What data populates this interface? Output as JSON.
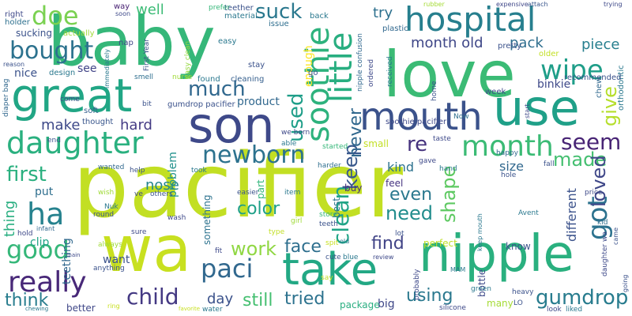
{
  "words": [
    {
      "text": "pacifier",
      "color": "#c2df23"
    },
    {
      "text": "baby",
      "color": "#35b779"
    },
    {
      "text": "love",
      "color": "#3bbb75"
    },
    {
      "text": "great",
      "color": "#21a685"
    },
    {
      "text": "son",
      "color": "#3e4989"
    },
    {
      "text": "use",
      "color": "#1fa088"
    },
    {
      "text": "wa",
      "color": "#c8e020"
    },
    {
      "text": "nipple",
      "color": "#2ab07f"
    },
    {
      "text": "mouth",
      "color": "#3b528b"
    },
    {
      "text": "take",
      "color": "#22a884"
    },
    {
      "text": "hospital",
      "color": "#277f8e"
    },
    {
      "text": "daughter",
      "color": "#2ab07f"
    },
    {
      "text": "month",
      "color": "#3bbb75"
    },
    {
      "text": "newborn",
      "color": "#2c728e"
    },
    {
      "text": "soothie",
      "color": "#2db27d"
    },
    {
      "text": "little",
      "color": "#28ae80"
    },
    {
      "text": "really",
      "color": "#482878"
    },
    {
      "text": "paci",
      "color": "#31688e"
    },
    {
      "text": "wipe",
      "color": "#1f9e89"
    },
    {
      "text": "doe",
      "color": "#7ad151"
    },
    {
      "text": "bought",
      "color": "#2c728e"
    },
    {
      "text": "ha",
      "color": "#26828e"
    },
    {
      "text": "first",
      "color": "#2ab07f"
    },
    {
      "text": "child",
      "color": "#443983"
    },
    {
      "text": "used",
      "color": "#1f9e89"
    },
    {
      "text": "got",
      "color": "#2c728e"
    },
    {
      "text": "clean",
      "color": "#20a486"
    },
    {
      "text": "seem",
      "color": "#482475"
    },
    {
      "text": "good",
      "color": "#35b779"
    },
    {
      "text": "gumdrop",
      "color": "#287c8e"
    },
    {
      "text": "much",
      "color": "#31688e"
    },
    {
      "text": "suck",
      "color": "#2a788e"
    },
    {
      "text": "re",
      "color": "#46337e"
    },
    {
      "text": "made",
      "color": "#44bf70"
    },
    {
      "text": "give",
      "color": "#b5de2b"
    },
    {
      "text": "work",
      "color": "#90d743"
    },
    {
      "text": "keep",
      "color": "#38588c"
    },
    {
      "text": "need",
      "color": "#228d8d"
    },
    {
      "text": "loved",
      "color": "#3f4788"
    },
    {
      "text": "color",
      "color": "#1fa088"
    },
    {
      "text": "shape",
      "color": "#5ec962"
    },
    {
      "text": "tried",
      "color": "#2c728e"
    },
    {
      "text": "face",
      "color": "#2e6f8e"
    },
    {
      "text": "still",
      "color": "#44bf70"
    },
    {
      "text": "find",
      "color": "#414487"
    },
    {
      "text": "using",
      "color": "#2a788e"
    },
    {
      "text": "even",
      "color": "#2a788e"
    },
    {
      "text": "think",
      "color": "#287d8e"
    },
    {
      "text": "never",
      "color": "#31688e"
    },
    {
      "text": "month old",
      "color": "#3f4788"
    },
    {
      "text": "pack",
      "color": "#2e6e8e"
    },
    {
      "text": "piece",
      "color": "#277f8e"
    },
    {
      "text": "different",
      "color": "#3b528b"
    },
    {
      "text": "hard",
      "color": "#443b84"
    },
    {
      "text": "make",
      "color": "#3e4989"
    },
    {
      "text": "thing",
      "color": "#28ae80"
    },
    {
      "text": "well",
      "color": "#3bbb75"
    },
    {
      "text": "try",
      "color": "#2d708e"
    },
    {
      "text": "day",
      "color": "#3b528b"
    },
    {
      "text": "nose",
      "color": "#25848e"
    },
    {
      "text": "size",
      "color": "#31688e"
    },
    {
      "text": "kind",
      "color": "#2c728e"
    },
    {
      "text": "paci1",
      "color": "#31688e"
    },
    {
      "text": "binkie",
      "color": "#3e4989"
    },
    {
      "text": "product",
      "color": "#31688e"
    },
    {
      "text": "nice",
      "color": "#3b528b"
    },
    {
      "text": "see",
      "color": "#414487"
    },
    {
      "text": "put",
      "color": "#2e6e8e"
    },
    {
      "text": "want",
      "color": "#3b528b"
    },
    {
      "text": "better",
      "color": "#3f4788"
    },
    {
      "text": "big",
      "color": "#3f4788"
    },
    {
      "text": "perfect",
      "color": "#bddf26"
    },
    {
      "text": "enough",
      "color": "#fde725"
    },
    {
      "text": "teething",
      "color": "#31688e"
    },
    {
      "text": "clip",
      "color": "#20a386"
    },
    {
      "text": "problem",
      "color": "#21918c"
    },
    {
      "text": "something",
      "color": "#2c728e"
    },
    {
      "text": "sucking",
      "color": "#3b528b"
    },
    {
      "text": "small",
      "color": "#c2df23"
    },
    {
      "text": "buy",
      "color": "#46307e"
    },
    {
      "text": "know",
      "color": "#3b528b"
    },
    {
      "text": "bottle",
      "color": "#3e4989"
    },
    {
      "text": "package",
      "color": "#28ae80"
    },
    {
      "text": "many",
      "color": "#a5db36"
    },
    {
      "text": "part",
      "color": "#31b57b"
    },
    {
      "text": "feel",
      "color": "#463480"
    },
    {
      "text": "best",
      "color": "#2c728e"
    },
    {
      "text": "gumdrop pacifier",
      "color": "#3b528b"
    },
    {
      "text": "soothie pacifier",
      "color": "#3e4989"
    },
    {
      "text": "found",
      "color": "#2a788e"
    },
    {
      "text": "cleaning",
      "color": "#355f8d"
    },
    {
      "text": "design",
      "color": "#2a788e"
    },
    {
      "text": "chew",
      "color": "#31688e"
    },
    {
      "text": "orthodontic",
      "color": "#2a788e"
    },
    {
      "text": "recommended",
      "color": "#3b528b"
    },
    {
      "text": "week",
      "color": "#3e4989"
    },
    {
      "text": "plastic",
      "color": "#31688e"
    },
    {
      "text": "back",
      "color": "#2a788e"
    },
    {
      "text": "right",
      "color": "#3e4989"
    },
    {
      "text": "holder",
      "color": "#2d708e"
    },
    {
      "text": "actually",
      "color": "#a0da39"
    },
    {
      "text": "nap",
      "color": "#3f4788"
    },
    {
      "text": "teether",
      "color": "#3b528b"
    },
    {
      "text": "material",
      "color": "#2a788e"
    },
    {
      "text": "issue",
      "color": "#2e6e8e"
    },
    {
      "text": "prefer",
      "color": "#35b779"
    },
    {
      "text": "way",
      "color": "#482173"
    },
    {
      "text": "soon",
      "color": "#3e4989"
    },
    {
      "text": "First Year",
      "color": "#3b528b"
    },
    {
      "text": "easy",
      "color": "#2a788e"
    },
    {
      "text": "easy clean",
      "color": "#95d840"
    },
    {
      "text": "rubber",
      "color": "#a5db36"
    },
    {
      "text": "expensive",
      "color": "#3f4788"
    },
    {
      "text": "attach",
      "color": "#39568c"
    },
    {
      "text": "trying",
      "color": "#3e4989"
    },
    {
      "text": "stay",
      "color": "#3b528b"
    },
    {
      "text": "older",
      "color": "#c2df23"
    },
    {
      "text": "pretty",
      "color": "#3b528b"
    },
    {
      "text": "ordered",
      "color": "#3e4989"
    },
    {
      "text": "received",
      "color": "#2a788e"
    },
    {
      "text": "nipple confusion",
      "color": "#31688e"
    },
    {
      "text": "go",
      "color": "#3b528b"
    },
    {
      "text": "reason",
      "color": "#3b528b"
    },
    {
      "text": "diaper bag",
      "color": "#31688e"
    },
    {
      "text": "immediately",
      "color": "#2a788e"
    },
    {
      "text": "smell",
      "color": "#2e6e8e"
    },
    {
      "text": "nurse",
      "color": "#a0da39"
    },
    {
      "text": "come",
      "color": "#3e4989"
    },
    {
      "text": "bit",
      "color": "#3b528b"
    },
    {
      "text": "soft",
      "color": "#355f8d"
    },
    {
      "text": "thought",
      "color": "#39568c"
    },
    {
      "text": "Now",
      "color": "#2e6e8e"
    },
    {
      "text": "home",
      "color": "#3b528b"
    },
    {
      "text": "start",
      "color": "#3e4989"
    },
    {
      "text": "end",
      "color": "#3b528b"
    },
    {
      "text": "we born",
      "color": "#3e4989"
    },
    {
      "text": "able",
      "color": "#2a788e"
    },
    {
      "text": "started",
      "color": "#35b779"
    },
    {
      "text": "taste",
      "color": "#3e4989"
    },
    {
      "text": "happy",
      "color": "#31688e"
    },
    {
      "text": "fall",
      "color": "#3b528b"
    },
    {
      "text": "hand",
      "color": "#2a788e"
    },
    {
      "text": "gave",
      "color": "#3e4989"
    },
    {
      "text": "hole",
      "color": "#3b528b"
    },
    {
      "text": "wanted",
      "color": "#31688e"
    },
    {
      "text": "help",
      "color": "#3b528b"
    },
    {
      "text": "took",
      "color": "#2a788e"
    },
    {
      "text": "harder",
      "color": "#2e6e8e"
    },
    {
      "text": "wish",
      "color": "#a0da39"
    },
    {
      "text": "ve",
      "color": "#3e4989"
    },
    {
      "text": "others",
      "color": "#3b528b"
    },
    {
      "text": "easier",
      "color": "#3b528b"
    },
    {
      "text": "item",
      "color": "#2a788e"
    },
    {
      "text": "price",
      "color": "#3e4989"
    },
    {
      "text": "Nuk",
      "color": "#2a788e"
    },
    {
      "text": "round",
      "color": "#3b528b"
    },
    {
      "text": "wash",
      "color": "#3e4989"
    },
    {
      "text": "girl",
      "color": "#a0da39"
    },
    {
      "text": "store",
      "color": "#35b779"
    },
    {
      "text": "Avent",
      "color": "#2a788e"
    },
    {
      "text": "kid",
      "color": "#2e6e8e"
    },
    {
      "text": "teeth",
      "color": "#3b528b"
    },
    {
      "text": "hold",
      "color": "#3e4989"
    },
    {
      "text": "infant",
      "color": "#31688e"
    },
    {
      "text": "sure",
      "color": "#3e4989"
    },
    {
      "text": "type",
      "color": "#c2df23"
    },
    {
      "text": "lot",
      "color": "#3b528b"
    },
    {
      "text": "spit",
      "color": "#c8e020"
    },
    {
      "text": "keep mouth",
      "color": "#2a788e"
    },
    {
      "text": "came",
      "color": "#3b528b"
    },
    {
      "text": "always",
      "color": "#a0da39"
    },
    {
      "text": "fit",
      "color": "#3e4989"
    },
    {
      "text": "old",
      "color": "#2a788e"
    },
    {
      "text": "cute",
      "color": "#3b528b"
    },
    {
      "text": "blue",
      "color": "#2a788e"
    },
    {
      "text": "review",
      "color": "#3e4989"
    },
    {
      "text": "anything",
      "color": "#3b528b"
    },
    {
      "text": "say",
      "color": "#c2df23"
    },
    {
      "text": "probably",
      "color": "#3e4989"
    },
    {
      "text": "MAM",
      "color": "#2a788e"
    },
    {
      "text": "heavy",
      "color": "#3b528b"
    },
    {
      "text": "daughter wa",
      "color": "#3e4989"
    },
    {
      "text": "green",
      "color": "#2a788e"
    },
    {
      "text": "LO",
      "color": "#3b528b"
    },
    {
      "text": "look",
      "color": "#3e4989"
    },
    {
      "text": "liked",
      "color": "#2a788e"
    },
    {
      "text": "going",
      "color": "#3b528b"
    },
    {
      "text": "water",
      "color": "#2a788e"
    },
    {
      "text": "silicone",
      "color": "#3e4989"
    },
    {
      "text": "favorite",
      "color": "#c8e020"
    },
    {
      "text": "leave",
      "color": "#c8e020"
    },
    {
      "text": "chewing",
      "color": "#2a788e"
    },
    {
      "text": "ring",
      "color": "#c8e020"
    },
    {
      "text": "main",
      "color": "#3e4989"
    },
    {
      "text": "hold1",
      "color": "#3b528b"
    },
    {
      "text": "newborn1",
      "color": "#3e4989"
    },
    {
      "text": "mouth1",
      "color": "#3b528b"
    }
  ]
}
